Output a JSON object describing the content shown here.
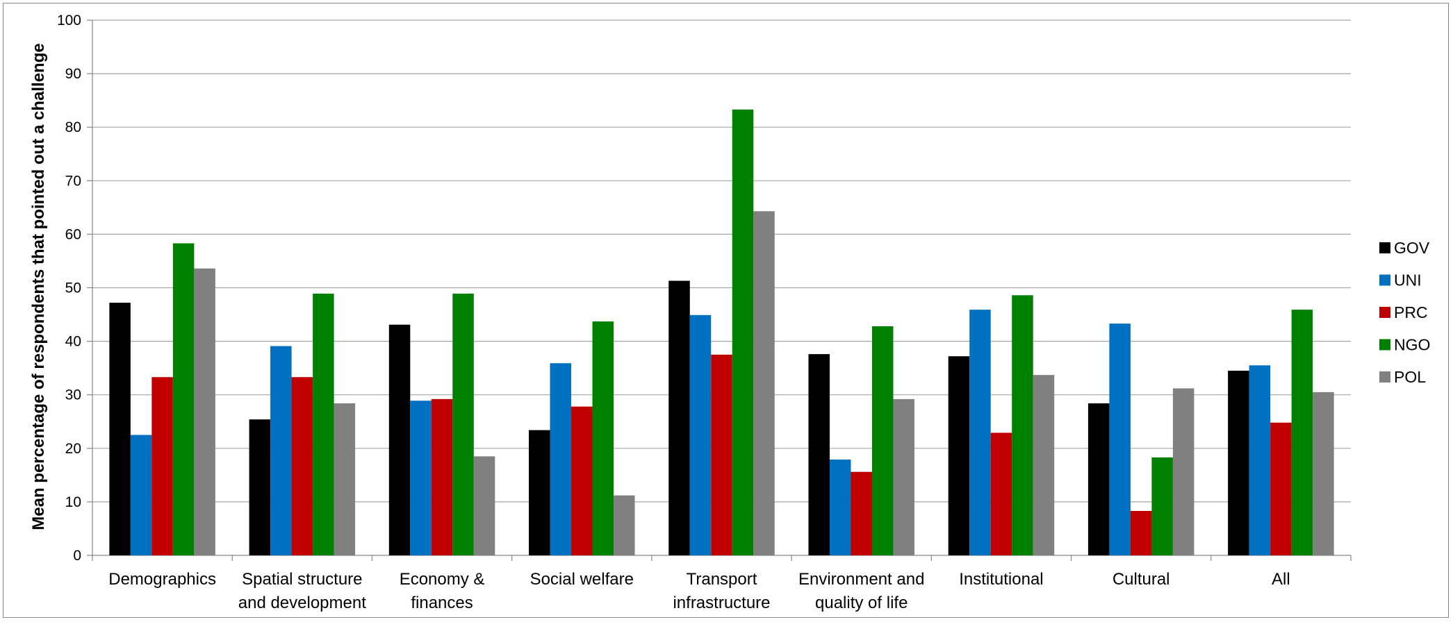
{
  "chart_data": {
    "type": "bar",
    "title": "",
    "xlabel": "",
    "ylabel": "Mean percentage of respondents that pointed out a challenge",
    "ylim": [
      0,
      100
    ],
    "yticks": [
      0,
      10,
      20,
      30,
      40,
      50,
      60,
      70,
      80,
      90,
      100
    ],
    "grid": true,
    "legend_position": "right",
    "categories": [
      [
        "Demographics"
      ],
      [
        "Spatial structure",
        "and development"
      ],
      [
        "Economy &",
        "finances"
      ],
      [
        "Social welfare"
      ],
      [
        "Transport",
        "infrastructure"
      ],
      [
        "Environment and",
        "quality of life"
      ],
      [
        "Institutional"
      ],
      [
        "Cultural"
      ],
      [
        "All"
      ]
    ],
    "series": [
      {
        "name": "GOV",
        "color": "#000000",
        "values": [
          47.2,
          25.4,
          43.1,
          23.4,
          51.3,
          37.6,
          37.2,
          28.4,
          34.5
        ]
      },
      {
        "name": "UNI",
        "color": "#0070c0",
        "values": [
          22.5,
          39.1,
          28.9,
          35.9,
          44.9,
          17.9,
          45.9,
          43.3,
          35.5
        ]
      },
      {
        "name": "PRC",
        "color": "#c00000",
        "values": [
          33.3,
          33.3,
          29.2,
          27.8,
          37.5,
          15.6,
          22.9,
          8.3,
          24.8
        ]
      },
      {
        "name": "NGO",
        "color": "#008000",
        "values": [
          58.3,
          48.9,
          48.9,
          43.7,
          83.3,
          42.8,
          48.6,
          18.3,
          45.9
        ]
      },
      {
        "name": "POL",
        "color": "#808080",
        "values": [
          53.6,
          28.4,
          18.5,
          11.2,
          64.3,
          29.2,
          33.7,
          31.2,
          30.5
        ]
      }
    ]
  }
}
